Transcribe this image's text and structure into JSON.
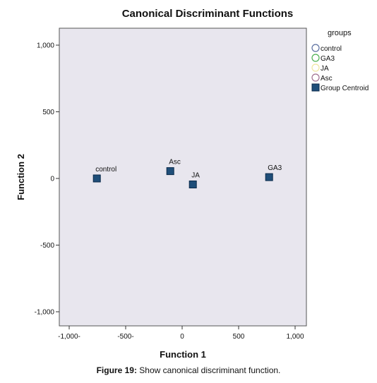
{
  "chart_data": {
    "type": "scatter",
    "title": "Canonical Discriminant Functions",
    "xlabel": "Function 1",
    "ylabel": "Function 2",
    "xlim": [
      -1000,
      1000
    ],
    "ylim": [
      -1000,
      1000
    ],
    "x_ticks": [
      {
        "value": -1000,
        "label": "-1,000-"
      },
      {
        "value": -500,
        "label": "-500-"
      },
      {
        "value": 0,
        "label": "0"
      },
      {
        "value": 500,
        "label": "500"
      },
      {
        "value": 1000,
        "label": "1,000"
      }
    ],
    "y_ticks": [
      {
        "value": 1000,
        "label": "1,000"
      },
      {
        "value": 500,
        "label": "500"
      },
      {
        "value": 0,
        "label": "0"
      },
      {
        "value": -500,
        "label": "-500"
      },
      {
        "value": -1000,
        "label": "-1,000"
      }
    ],
    "grid": false,
    "background_color": "#e8e6ee",
    "centroids": [
      {
        "name": "control",
        "x": -755,
        "y": 0
      },
      {
        "name": "Asc",
        "x": -105,
        "y": 55
      },
      {
        "name": "JA",
        "x": 95,
        "y": -45
      },
      {
        "name": "GA3",
        "x": 770,
        "y": 10
      }
    ],
    "legend": {
      "title": "groups",
      "placement": "right",
      "items": [
        {
          "label": "control",
          "marker": "circle-open",
          "color": "#5b6fa0"
        },
        {
          "label": "GA3",
          "marker": "circle-open",
          "color": "#4caf50"
        },
        {
          "label": "JA",
          "marker": "circle-open",
          "color": "#f0e6a0"
        },
        {
          "label": "Asc",
          "marker": "circle-open",
          "color": "#a07090"
        },
        {
          "label": "Group Centroid",
          "marker": "square-filled",
          "color": "#1f4e79"
        }
      ]
    },
    "centroid_color": "#1f4e79"
  },
  "caption": {
    "prefix": "Figure 19:",
    "text": " Show canonical discriminant function."
  }
}
